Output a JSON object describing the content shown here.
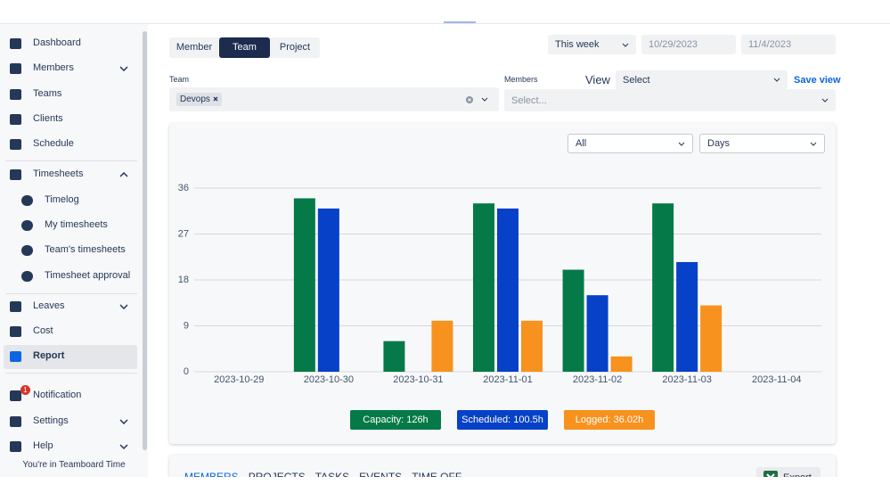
{
  "sidebar": {
    "items": [
      "Dashboard",
      "Members",
      "Teams",
      "Clients",
      "Schedule",
      "Timesheets",
      "Timelog",
      "My timesheets",
      "Team's timesheets",
      "Timesheet approval",
      "Leaves",
      "Cost",
      "Report",
      "Notification",
      "Settings",
      "Help"
    ],
    "notification_badge": "1",
    "footer": "You're in Teamboard Time"
  },
  "header": {
    "tabs": [
      "Member",
      "Team",
      "Project"
    ],
    "period": "This week",
    "start_date": "10/29/2023",
    "end_date": "11/4/2023"
  },
  "filters": {
    "team_label": "Team",
    "team_chip": "Devops",
    "members_label": "Members",
    "members_placeholder": "Select...",
    "view_label": "View",
    "view_placeholder": "Select",
    "save_view": "Save view"
  },
  "chart_controls": {
    "scope": "All",
    "granularity": "Days"
  },
  "chart_data": {
    "type": "bar",
    "categories": [
      "2023-10-29",
      "2023-10-30",
      "2023-10-31",
      "2023-11-01",
      "2023-11-02",
      "2023-11-03",
      "2023-11-04"
    ],
    "series": [
      {
        "name": "Capacity: 126h",
        "color": "#057a48",
        "values": [
          0,
          34,
          6,
          33,
          20,
          33,
          0
        ]
      },
      {
        "name": "Scheduled: 100.5h",
        "color": "#0641c8",
        "values": [
          0,
          32,
          0,
          32,
          15,
          21.5,
          0
        ]
      },
      {
        "name": "Logged: 36.02h",
        "color": "#f7921e",
        "values": [
          0,
          0,
          10,
          10,
          3,
          13,
          0
        ]
      }
    ],
    "ylim": [
      0,
      36
    ],
    "yticks": [
      0,
      9,
      18,
      27,
      36
    ],
    "grid": true
  },
  "bottom_tabs": [
    "MEMBERS",
    "PROJECTS",
    "TASKS",
    "EVENTS",
    "TIME OFF"
  ],
  "export": "Export"
}
